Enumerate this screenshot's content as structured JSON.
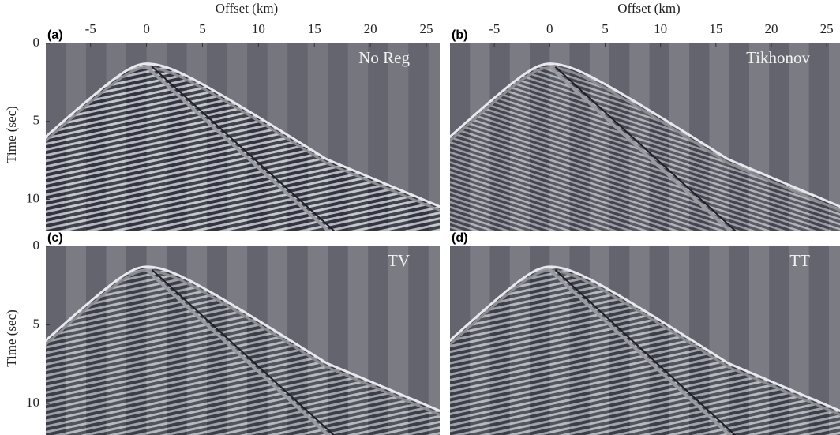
{
  "chart_data": [
    {
      "type": "seismic",
      "label": "(a)",
      "annotation": "No Reg",
      "xlabel": "Offset (km)",
      "ylabel": "Time (sec)",
      "xlim": [
        -9,
        26.2
      ],
      "ylim": [
        0,
        12
      ],
      "xticks": [
        -5,
        0,
        5,
        10,
        15,
        20,
        25
      ],
      "yticks": [
        0,
        5,
        10
      ]
    },
    {
      "type": "seismic",
      "label": "(b)",
      "annotation": "Tikhonov",
      "xlabel": "Offset (km)",
      "xlim": [
        -9,
        26.2
      ],
      "ylim": [
        0,
        12
      ],
      "xticks": [
        -5,
        0,
        5,
        10,
        15,
        20,
        25
      ]
    },
    {
      "type": "seismic",
      "label": "(c)",
      "annotation": "TV",
      "ylabel": "Time (sec)",
      "xlim": [
        -9,
        26.2
      ],
      "ylim": [
        0,
        12
      ],
      "yticks": [
        0,
        5,
        10
      ]
    },
    {
      "type": "seismic",
      "label": "(d)",
      "annotation": "TT",
      "xlim": [
        -9,
        26.2
      ],
      "ylim": [
        0,
        12
      ]
    }
  ]
}
